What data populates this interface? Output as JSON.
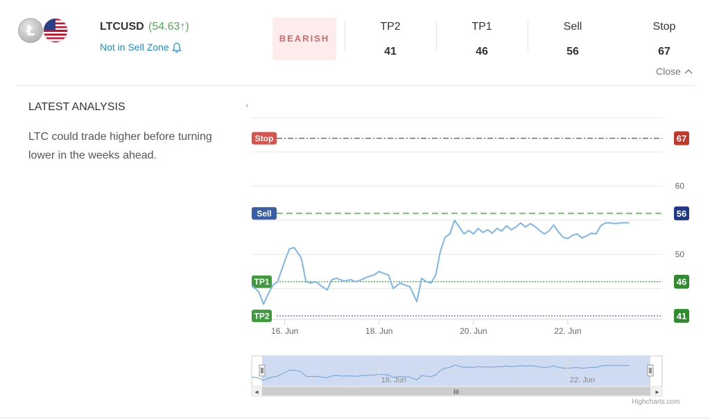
{
  "header": {
    "symbol": "LTCUSD",
    "price": "(54.63↑)",
    "zone_status": "Not in Sell Zone",
    "sentiment": "BEARISH",
    "levels": [
      {
        "label": "TP2",
        "value": "41"
      },
      {
        "label": "TP1",
        "value": "46"
      },
      {
        "label": "Sell",
        "value": "56"
      },
      {
        "label": "Stop",
        "value": "67"
      }
    ],
    "close_label": "Close",
    "coin_glyph": "Ł"
  },
  "analysis": {
    "title": "LATEST ANALYSIS",
    "text": "LTC could trade higher before turning lower in the weeks ahead.",
    "expand_glyph": "›"
  },
  "colors": {
    "price_up": "#5aa85a",
    "link": "#1a8ad9",
    "bearish_bg": "#fdeceb",
    "bearish_text": "#d46a6a",
    "line": "#7cb5ec",
    "stop": "#d9534f",
    "sell": "#3a5ea5",
    "tp": "#3d9b3d",
    "navigator_fill": "#c6d5ee"
  },
  "chart_data": {
    "type": "line",
    "title": "",
    "xlabel": "",
    "ylabel": "",
    "x_ticks": [
      "16. Jun",
      "18. Jun",
      "20. Jun",
      "22. Jun"
    ],
    "y_ticks": [
      50,
      60
    ],
    "ylim": [
      40.5,
      70
    ],
    "x_range_days": [
      15.3,
      24.0
    ],
    "grid": true,
    "levels": [
      {
        "name": "Stop",
        "value": 67,
        "value_label": "67",
        "style": "dash-dot",
        "color": "#b03030",
        "label_color": "#d9534f",
        "value_bg": "#c0392b"
      },
      {
        "name": "Sell",
        "value": 56,
        "value_label": "56",
        "style": "dashed",
        "color": "#5cb85c",
        "label_color": "#3a5ea5",
        "value_bg": "#1f3a8a"
      },
      {
        "name": "TP1",
        "value": 46,
        "value_label": "46",
        "style": "dotted",
        "color": "#3d9b3d",
        "label_color": "#3d9b3d",
        "value_bg": "#2e8b2e"
      },
      {
        "name": "TP2",
        "value": 41,
        "value_label": "41",
        "style": "dotted",
        "color": "#a05a8a",
        "label_color": "#3d9b3d",
        "value_bg": "#2e8b2e"
      }
    ],
    "series": [
      {
        "name": "LTCUSD",
        "x": [
          15.3,
          15.45,
          15.55,
          15.65,
          15.75,
          15.85,
          16.0,
          16.1,
          16.2,
          16.35,
          16.45,
          16.55,
          16.65,
          16.75,
          16.9,
          17.0,
          17.1,
          17.25,
          17.4,
          17.5,
          17.6,
          17.75,
          17.9,
          18.0,
          18.1,
          18.2,
          18.3,
          18.45,
          18.55,
          18.65,
          18.8,
          18.9,
          19.0,
          19.1,
          19.2,
          19.3,
          19.4,
          19.5,
          19.6,
          19.7,
          19.8,
          19.9,
          20.0,
          20.1,
          20.2,
          20.3,
          20.4,
          20.5,
          20.6,
          20.7,
          20.8,
          20.9,
          21.0,
          21.1,
          21.2,
          21.3,
          21.4,
          21.5,
          21.6,
          21.7,
          21.8,
          21.9,
          22.0,
          22.1,
          22.2,
          22.3,
          22.4,
          22.5,
          22.6,
          22.7,
          22.8,
          22.9,
          23.0,
          23.1,
          23.2,
          23.3
        ],
        "y": [
          45.5,
          44.5,
          42.7,
          44.2,
          45.5,
          46.0,
          49.0,
          50.8,
          51.0,
          49.5,
          46.0,
          45.8,
          46.0,
          45.5,
          44.8,
          46.3,
          46.5,
          46.1,
          46.3,
          46.0,
          46.2,
          46.7,
          47.0,
          47.5,
          47.2,
          47.0,
          45.0,
          45.8,
          45.5,
          45.3,
          43.1,
          46.5,
          46.0,
          45.8,
          47.0,
          50.5,
          52.5,
          53.0,
          55.0,
          54.0,
          53.0,
          53.5,
          53.0,
          53.8,
          53.2,
          53.6,
          53.1,
          53.8,
          53.4,
          54.2,
          53.6,
          54.0,
          54.6,
          54.0,
          54.5,
          54.1,
          53.5,
          53.0,
          53.4,
          54.3,
          53.3,
          52.5,
          52.3,
          52.8,
          53.0,
          52.4,
          52.7,
          53.1,
          53.0,
          54.2,
          54.6,
          54.63,
          54.5,
          54.6,
          54.63,
          54.63
        ]
      }
    ],
    "navigator": {
      "x_ticks": [
        "18. Jun",
        "22. Jun"
      ],
      "scroll_handle_glyph": "III",
      "left_arrow": "◂",
      "right_arrow": "▸"
    },
    "credits": "Highcharts.com"
  }
}
